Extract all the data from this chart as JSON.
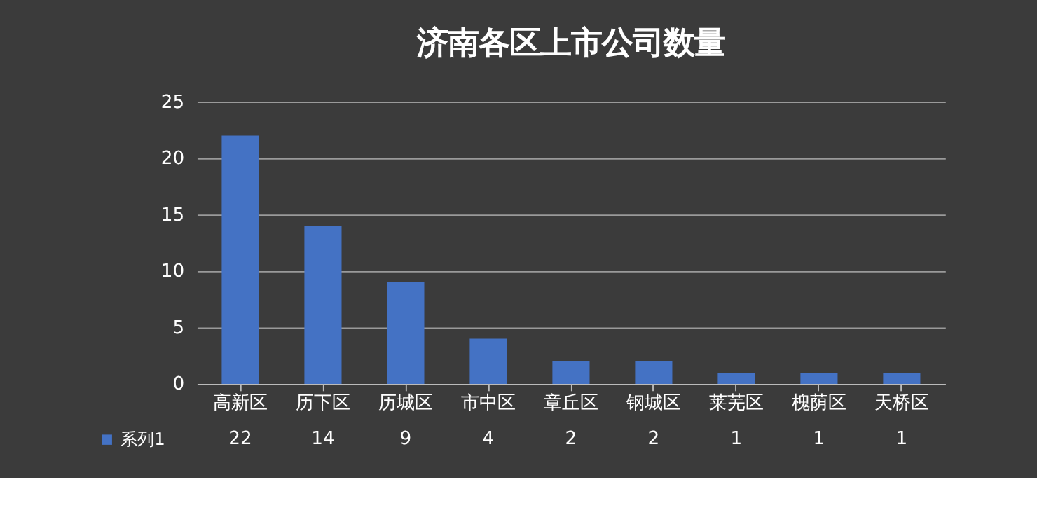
{
  "chart_data": {
    "type": "bar",
    "title": "济南各区上市公司数量",
    "categories": [
      "高新区",
      "历下区",
      "历城区",
      "市中区",
      "章丘区",
      "钢城区",
      "莱芜区",
      "槐荫区",
      "天桥区"
    ],
    "series": [
      {
        "name": "系列1",
        "color": "#4472c4",
        "values": [
          22,
          14,
          9,
          4,
          2,
          2,
          1,
          1,
          1
        ]
      }
    ],
    "ylim": [
      0,
      25
    ],
    "yticks": [
      0,
      5,
      10,
      15,
      20,
      25
    ],
    "grid": "y",
    "legend": "bottom left",
    "data_labels": true
  }
}
